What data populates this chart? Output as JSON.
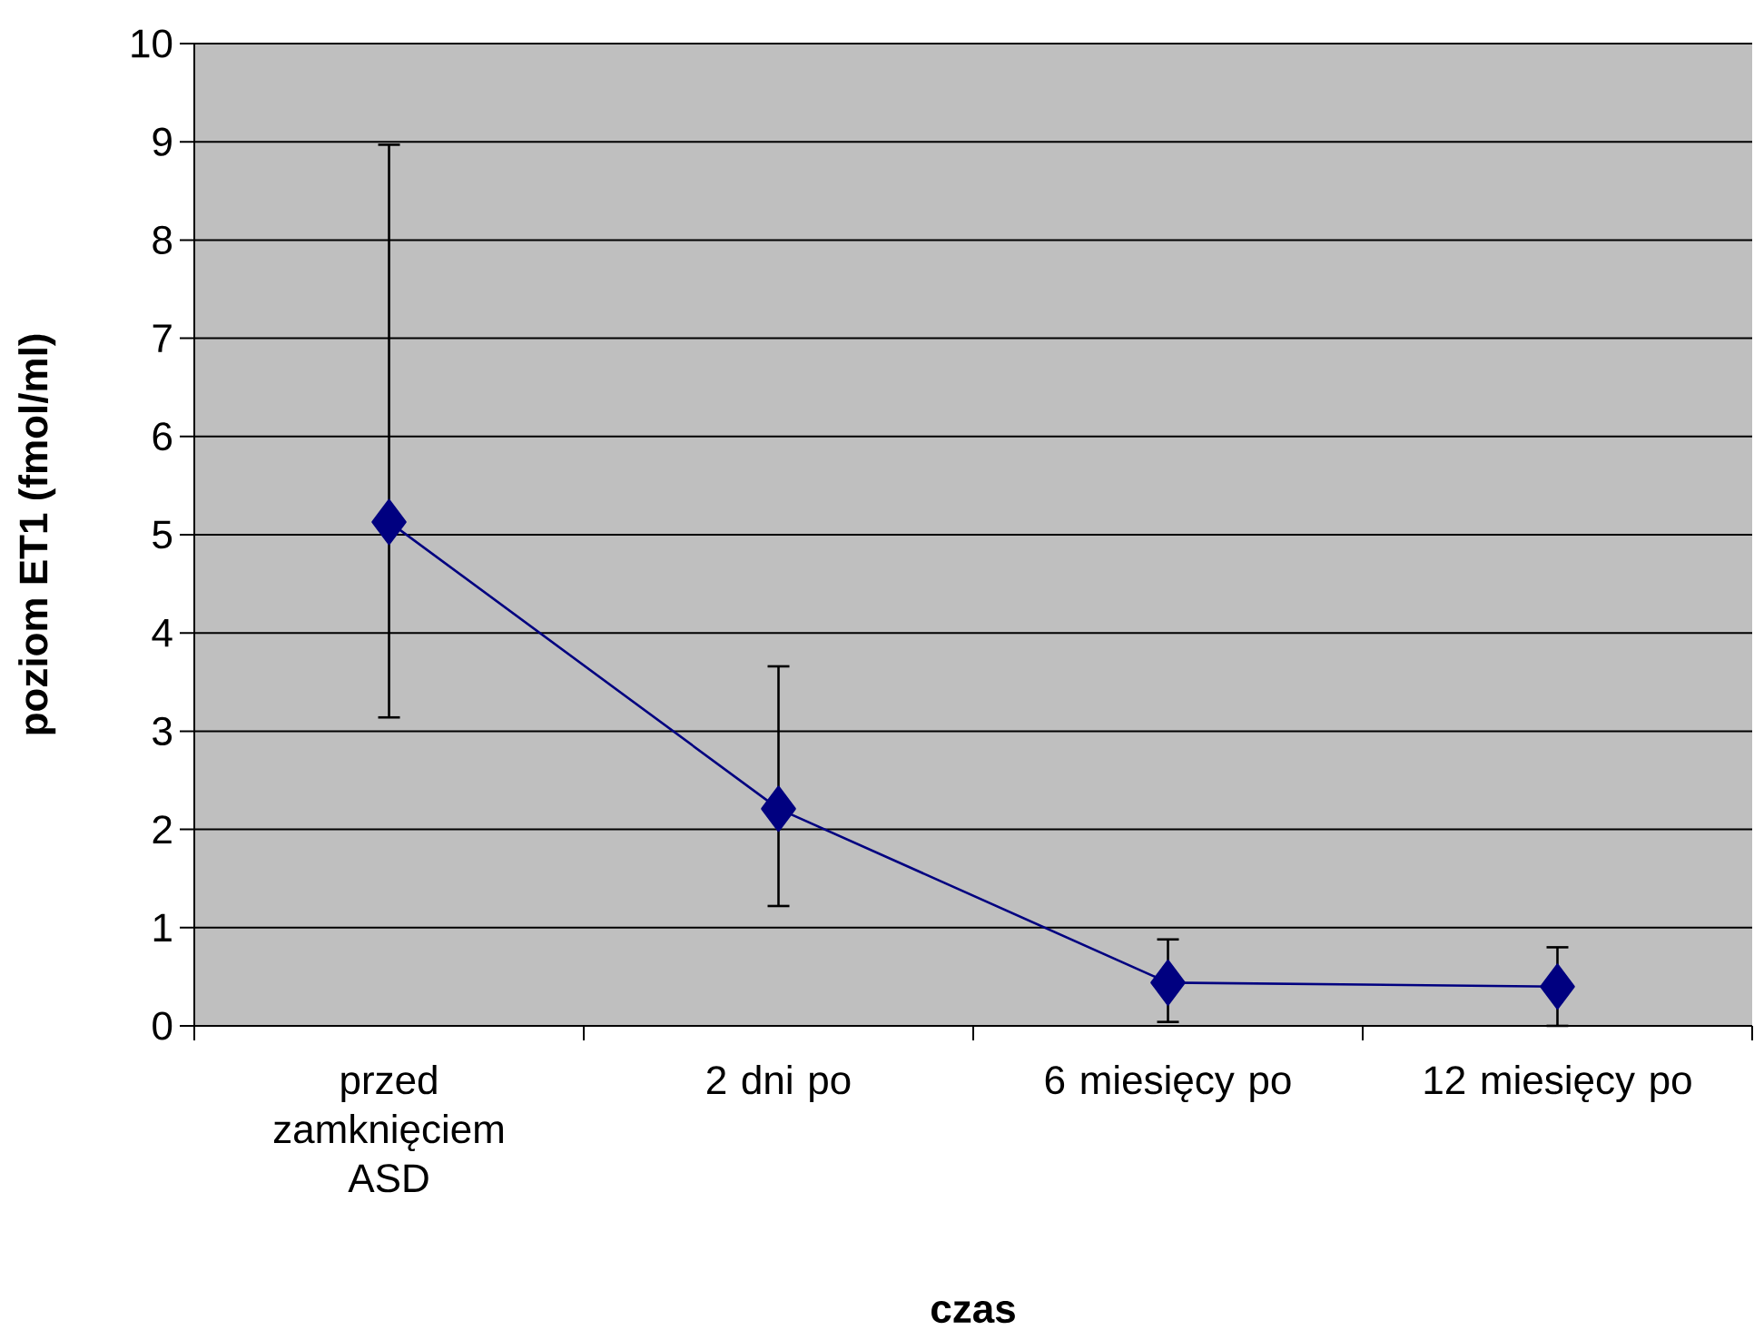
{
  "chart_data": {
    "type": "line",
    "xlabel": "czas",
    "ylabel": "poziom ET1 (fmol/ml)",
    "categories": [
      "przed zamknięciem ASD",
      "2 dni po",
      "6 miesięcy po",
      "12 miesięcy po"
    ],
    "series": [
      {
        "color": "#000080",
        "values": [
          5.13,
          2.21,
          0.44,
          0.4
        ],
        "errors": [
          [
            3.14,
            8.97
          ],
          [
            1.22,
            3.66
          ],
          [
            0.04,
            0.88
          ],
          [
            0.0,
            0.8
          ]
        ]
      }
    ],
    "ylim": [
      0,
      10
    ],
    "yticks": [
      0,
      1,
      2,
      3,
      4,
      5,
      6,
      7,
      8,
      9,
      10
    ],
    "grid": "y",
    "marker": "diamond",
    "line_style": "solid"
  }
}
